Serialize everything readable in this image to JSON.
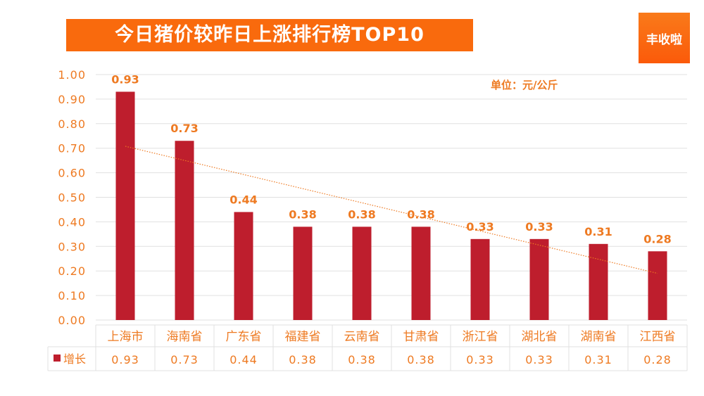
{
  "title": "今日猪价较昨日上涨排行榜TOP10",
  "brand": "丰收啦",
  "unit": "单位：元/公斤",
  "colors": {
    "bar": "#be1e2d",
    "text": "#ee7a22",
    "trend": "#ee7a22",
    "grid": "#e0e0e0"
  },
  "chart_data": {
    "type": "bar",
    "title": "今日猪价较昨日上涨排行榜TOP10",
    "categories": [
      "上海市",
      "海南省",
      "广东省",
      "福建省",
      "云南省",
      "甘肃省",
      "浙江省",
      "湖北省",
      "湖南省",
      "江西省"
    ],
    "series": [
      {
        "name": "增长",
        "values": [
          0.93,
          0.73,
          0.44,
          0.38,
          0.38,
          0.38,
          0.33,
          0.33,
          0.31,
          0.28
        ]
      }
    ],
    "value_labels": [
      "0.93",
      "0.73",
      "0.44",
      "0.38",
      "0.38",
      "0.38",
      "0.33",
      "0.33",
      "0.31",
      "0.28"
    ],
    "yticks": [
      "0.00",
      "0.10",
      "0.20",
      "0.30",
      "0.40",
      "0.50",
      "0.60",
      "0.70",
      "0.80",
      "0.90",
      "1.00"
    ],
    "ylim": [
      0,
      1
    ],
    "trendline": "linear",
    "grid": true,
    "data_table": true
  }
}
